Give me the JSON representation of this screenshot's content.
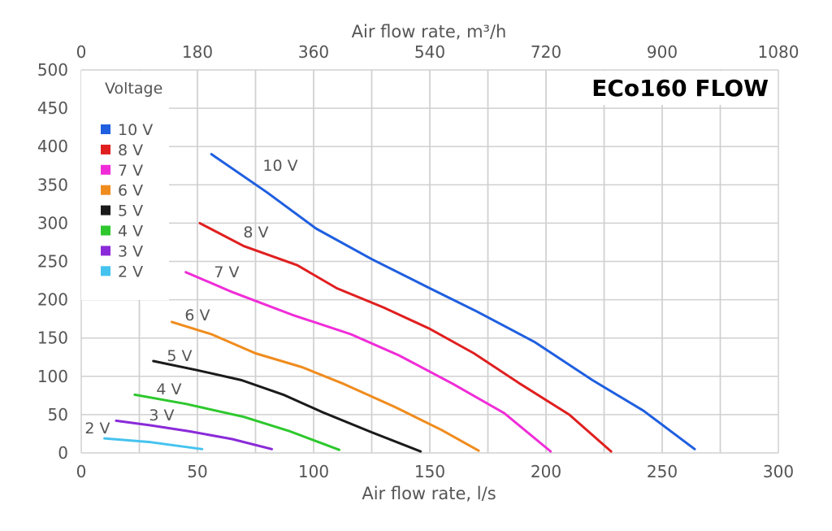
{
  "chart_data": {
    "type": "line",
    "title": "ECo160 FLOW",
    "xlabel": "Air flow rate, l/s",
    "x2label": "Air flow rate, m³/h",
    "ylabel": "",
    "xlim": [
      0,
      300
    ],
    "ylim": [
      0,
      500
    ],
    "x2lim": [
      0,
      1080
    ],
    "xticks": [
      "0",
      "50",
      "100",
      "150",
      "200",
      "250",
      "300"
    ],
    "x2ticks": [
      "0",
      "180",
      "360",
      "540",
      "720",
      "900",
      "1080"
    ],
    "yticks": [
      "0",
      "50",
      "100",
      "150",
      "200",
      "250",
      "300",
      "350",
      "400",
      "450",
      "500"
    ],
    "grid": true,
    "legend_title": "Voltage",
    "legend_position": "top-left",
    "series": [
      {
        "name": "10 V",
        "label": "10 V",
        "color": "#1f5fe0",
        "x": [
          56,
          80,
          101,
          125,
          150,
          170,
          195,
          220,
          242,
          264
        ],
        "y": [
          390,
          340,
          293,
          253,
          215,
          185,
          145,
          95,
          55,
          5
        ]
      },
      {
        "name": "8 V",
        "label": "8 V",
        "color": "#e01f1f",
        "x": [
          51,
          70,
          93,
          110,
          130,
          150,
          169,
          189,
          210,
          228
        ],
        "y": [
          300,
          270,
          245,
          215,
          190,
          162,
          130,
          90,
          50,
          2
        ]
      },
      {
        "name": "7 V",
        "label": "7 V",
        "color": "#f02cd8",
        "x": [
          45,
          65,
          91,
          116,
          137,
          160,
          182,
          202
        ],
        "y": [
          236,
          210,
          180,
          155,
          127,
          90,
          52,
          2
        ]
      },
      {
        "name": "6 V",
        "label": "6 V",
        "color": "#f08c1e",
        "x": [
          39,
          56,
          75,
          95,
          113,
          135,
          155,
          171
        ],
        "y": [
          171,
          155,
          130,
          112,
          90,
          60,
          30,
          3
        ]
      },
      {
        "name": "5 V",
        "label": "5 V",
        "color": "#1a1a1a",
        "x": [
          31,
          50,
          69,
          87,
          104,
          125,
          146
        ],
        "y": [
          120,
          108,
          95,
          76,
          53,
          27,
          2
        ]
      },
      {
        "name": "4 V",
        "label": "4 V",
        "color": "#2ec82e",
        "x": [
          23,
          45,
          70,
          90,
          111
        ],
        "y": [
          76,
          64,
          47,
          28,
          4
        ]
      },
      {
        "name": "3 V",
        "label": "3 V",
        "color": "#8a2ad8",
        "x": [
          15,
          30,
          47,
          65,
          82
        ],
        "y": [
          42,
          36,
          28,
          18,
          5
        ]
      },
      {
        "name": "2 V",
        "label": "2 V",
        "color": "#45c3ef",
        "x": [
          10,
          30,
          52
        ],
        "y": [
          19,
          14,
          5
        ]
      }
    ]
  }
}
